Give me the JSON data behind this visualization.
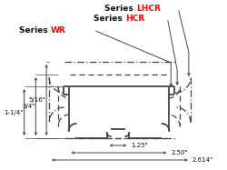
{
  "title_lhcr_black": "Series ",
  "title_lhcr_red": "LHCR",
  "title_hcr_black": "Series ",
  "title_hcr_red": "HCR",
  "title_wr_black": "Series ",
  "title_wr_red": "WR",
  "color_red": "red",
  "color_black": "#111111",
  "color_line": "#444444",
  "bg": "white",
  "dim_1_1_4": "1-1/4\"",
  "dim_3_4": "3/4\"",
  "dim_5_16": "5/16\"",
  "dim_1_25": "1.25\"",
  "dim_2_50": "2.50\"",
  "dim_2_614": "2.614\""
}
